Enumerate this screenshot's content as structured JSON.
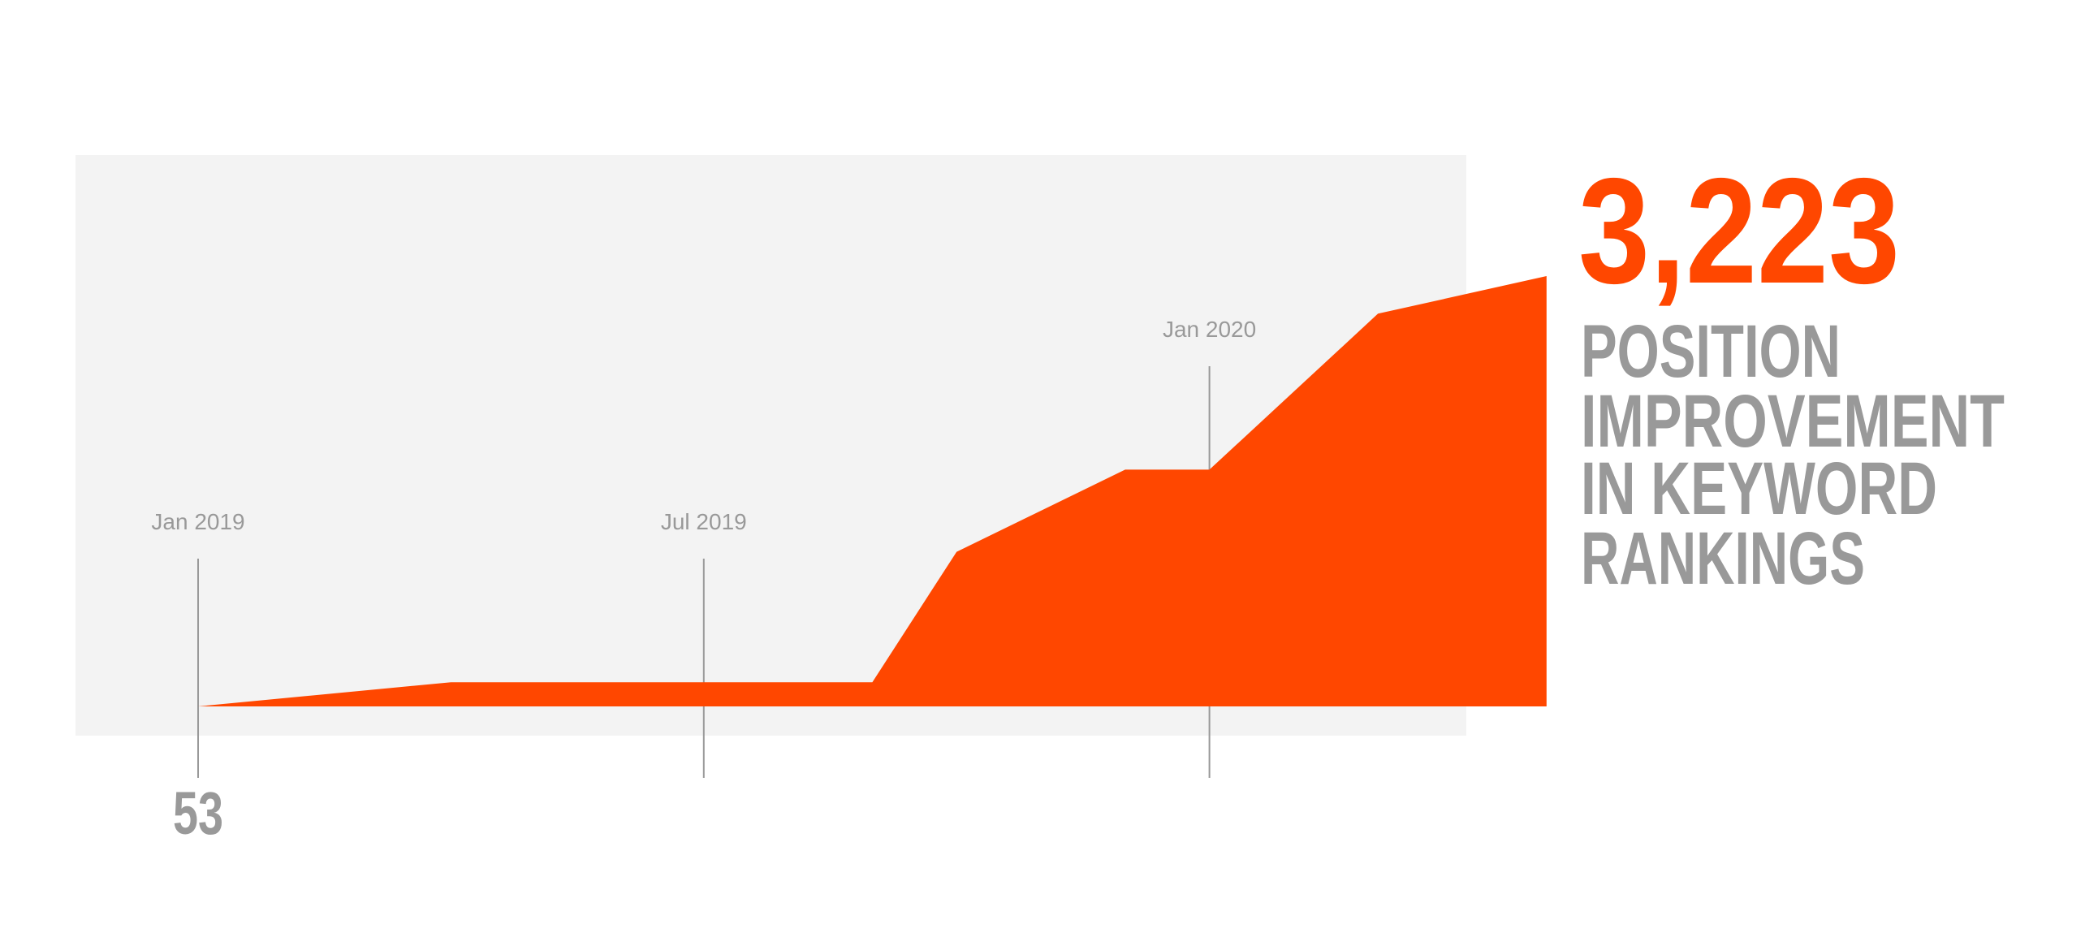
{
  "chart_data": {
    "type": "area",
    "x": [
      "2019-01",
      "2019-04",
      "2019-09",
      "2019-10",
      "2019-12",
      "2020-01",
      "2020-03",
      "2020-05"
    ],
    "values": [
      53,
      231,
      231,
      1192,
      1797,
      1797,
      2946,
      3223
    ],
    "value_labels": [
      "53",
      null,
      null,
      null,
      null,
      null,
      null,
      "3,223"
    ],
    "color": "#ff4700",
    "ylim": [
      53,
      3223
    ],
    "xticks": [
      {
        "value": "2019-01",
        "label": "Jan 2019"
      },
      {
        "value": "2019-07",
        "label": "Jul 2019"
      },
      {
        "value": "2020-01",
        "label": "Jan 2020"
      }
    ],
    "subtitle_lines": [
      "POSITION",
      "IMPROVEMENT",
      "IN KEYWORD",
      "RANKINGS"
    ]
  }
}
